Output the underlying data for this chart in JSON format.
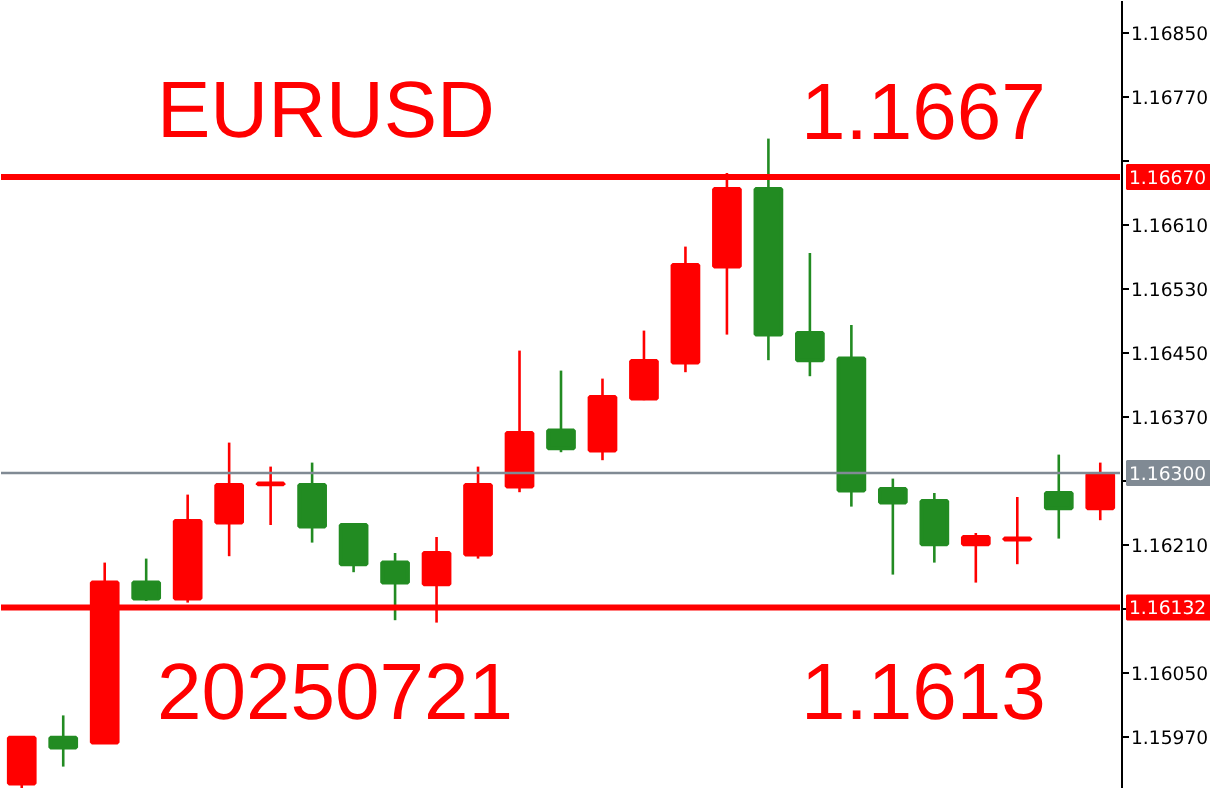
{
  "chart_data": {
    "type": "candlestick",
    "annotations": [
      "EURUSD",
      "1.1667",
      "20250721",
      "1.1613"
    ],
    "categories": [
      null,
      null,
      null,
      null,
      null,
      null,
      null,
      null,
      null,
      null,
      null,
      null,
      null,
      null,
      null,
      null,
      null,
      null,
      null,
      null,
      null,
      null,
      null,
      null,
      null,
      null,
      null
    ],
    "ohlc": [
      [
        1.15912,
        1.15969,
        1.15905,
        1.15969
      ],
      [
        1.15969,
        1.15997,
        1.15933,
        1.15957
      ],
      [
        1.15963,
        1.16188,
        1.15963,
        1.16163
      ],
      [
        1.16163,
        1.16193,
        1.1614,
        1.16143
      ],
      [
        1.16143,
        1.16273,
        1.16138,
        1.1624
      ],
      [
        1.16238,
        1.16338,
        1.16196,
        1.16285
      ],
      [
        1.16286,
        1.16308,
        1.16235,
        1.16287
      ],
      [
        1.16285,
        1.16313,
        1.16213,
        1.16233
      ],
      [
        1.16235,
        1.16235,
        1.16176,
        1.16186
      ],
      [
        1.16188,
        1.162,
        1.16116,
        1.16163
      ],
      [
        1.16161,
        1.1622,
        1.16113,
        1.162
      ],
      [
        1.16198,
        1.16308,
        1.16193,
        1.16285
      ],
      [
        1.16283,
        1.16453,
        1.16276,
        1.1635
      ],
      [
        1.16353,
        1.16428,
        1.16326,
        1.16331
      ],
      [
        1.16328,
        1.16418,
        1.16316,
        1.16395
      ],
      [
        1.16393,
        1.16478,
        1.16391,
        1.1644
      ],
      [
        1.16438,
        1.16583,
        1.16426,
        1.1656
      ],
      [
        1.16558,
        1.16675,
        1.16473,
        1.16655
      ],
      [
        1.16655,
        1.16718,
        1.16441,
        1.16473
      ],
      [
        1.16475,
        1.16575,
        1.16421,
        1.16441
      ],
      [
        1.16443,
        1.16485,
        1.16258,
        1.16278
      ],
      [
        1.1628,
        1.16293,
        1.16173,
        1.16263
      ],
      [
        1.16265,
        1.16275,
        1.16188,
        1.16211
      ],
      [
        1.16211,
        1.16225,
        1.16163,
        1.1622
      ],
      [
        1.16217,
        1.1627,
        1.16186,
        1.16218
      ],
      [
        1.16275,
        1.16323,
        1.16218,
        1.16256
      ],
      [
        1.16256,
        1.16313,
        1.16241,
        1.16298
      ]
    ],
    "colors": [
      "#ff0000",
      "#228b22",
      "#ff0000",
      "#228b22",
      "#ff0000",
      "#ff0000",
      "#ff0000",
      "#228b22",
      "#228b22",
      "#228b22",
      "#ff0000",
      "#ff0000",
      "#ff0000",
      "#228b22",
      "#ff0000",
      "#ff0000",
      "#ff0000",
      "#ff0000",
      "#228b22",
      "#228b22",
      "#228b22",
      "#228b22",
      "#228b22",
      "#ff0000",
      "#ff0000",
      "#228b22",
      "#ff0000"
    ],
    "ylim": [
      1.15905,
      1.1689
    ],
    "yticks": [
      {
        "value": 1.1685,
        "label": "1.16850"
      },
      {
        "value": 1.1677,
        "label": "1.16770"
      },
      {
        "value": 1.1669,
        "label": null
      },
      {
        "value": 1.1661,
        "label": "1.16610"
      },
      {
        "value": 1.1653,
        "label": "1.16530"
      },
      {
        "value": 1.1645,
        "label": "1.16450"
      },
      {
        "value": 1.1637,
        "label": "1.16370"
      },
      {
        "value": 1.1629,
        "label": null
      },
      {
        "value": 1.1621,
        "label": "1.16210"
      },
      {
        "value": 1.1613,
        "label": null
      },
      {
        "value": 1.1605,
        "label": "1.16050"
      },
      {
        "value": 1.1597,
        "label": "1.15970"
      }
    ],
    "ref_lines": [
      {
        "axis": "y",
        "value": 1.1667,
        "label": "1.16670",
        "color": "#ff0000"
      },
      {
        "axis": "y",
        "value": 1.16132,
        "label": "1.16132",
        "color": "#ff0000"
      },
      {
        "axis": "y",
        "value": 1.163,
        "label": "1.16300",
        "color": "#808a94"
      }
    ],
    "tick_labels": "y",
    "grid": false
  }
}
